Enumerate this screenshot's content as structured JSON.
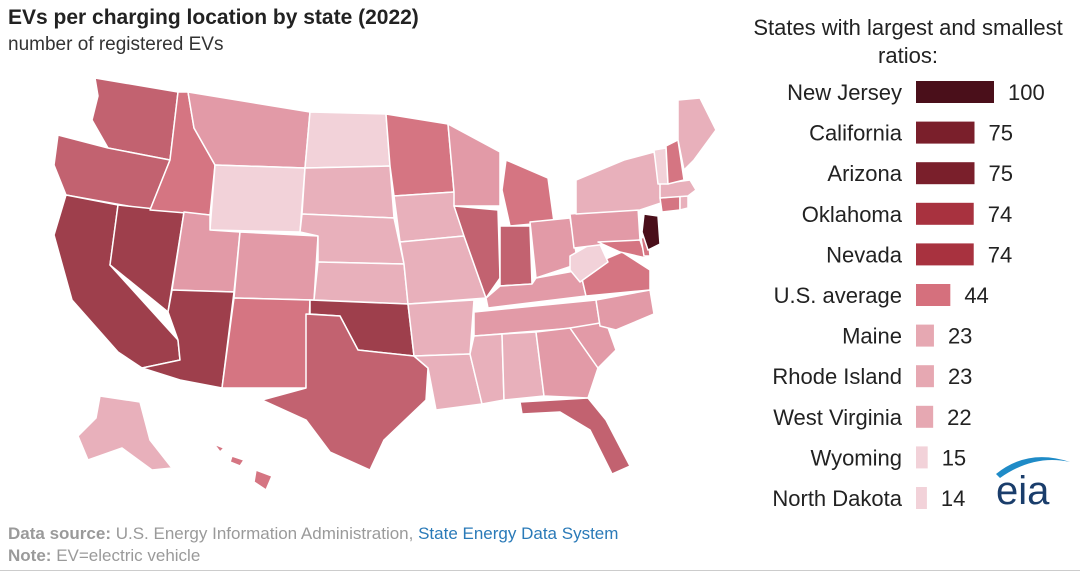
{
  "header": {
    "title": "EVs per charging location by state (2022)",
    "subtitle": "number of registered EVs"
  },
  "colors": {
    "very_light": "#f2d2d9",
    "light": "#e8b0bb",
    "medium_light": "#e29aa7",
    "medium": "#d57582",
    "medium_dark": "#c26270",
    "dark": "#9e3f4c",
    "darker": "#8a3440",
    "darkest": "#4a0f1a"
  },
  "chart_data": {
    "type": "bar",
    "title": "States with largest and smallest ratios:",
    "categories": [
      "New Jersey",
      "California",
      "Arizona",
      "Oklahoma",
      "Nevada",
      "U.S. average",
      "Maine",
      "Rhode Island",
      "West Virginia",
      "Wyoming",
      "North Dakota"
    ],
    "values": [
      100,
      75,
      75,
      74,
      74,
      44,
      23,
      23,
      22,
      15,
      14
    ],
    "bar_colors": [
      "#4a0f1a",
      "#7a1f2b",
      "#7a1f2b",
      "#a8323f",
      "#a8323f",
      "#d5707d",
      "#e6a8b2",
      "#e6a8b2",
      "#e6a8b2",
      "#f2d2d9",
      "#f2d2d9"
    ],
    "xlim": [
      0,
      100
    ],
    "legend": "none",
    "grid": false
  },
  "footer": {
    "source_label": "Data source:",
    "source_text": "U.S. Energy Information Administration,",
    "source_link": "State Energy Data System",
    "note_label": "Note:",
    "note_text": "EV=electric vehicle"
  },
  "logo": {
    "text": "eia"
  }
}
